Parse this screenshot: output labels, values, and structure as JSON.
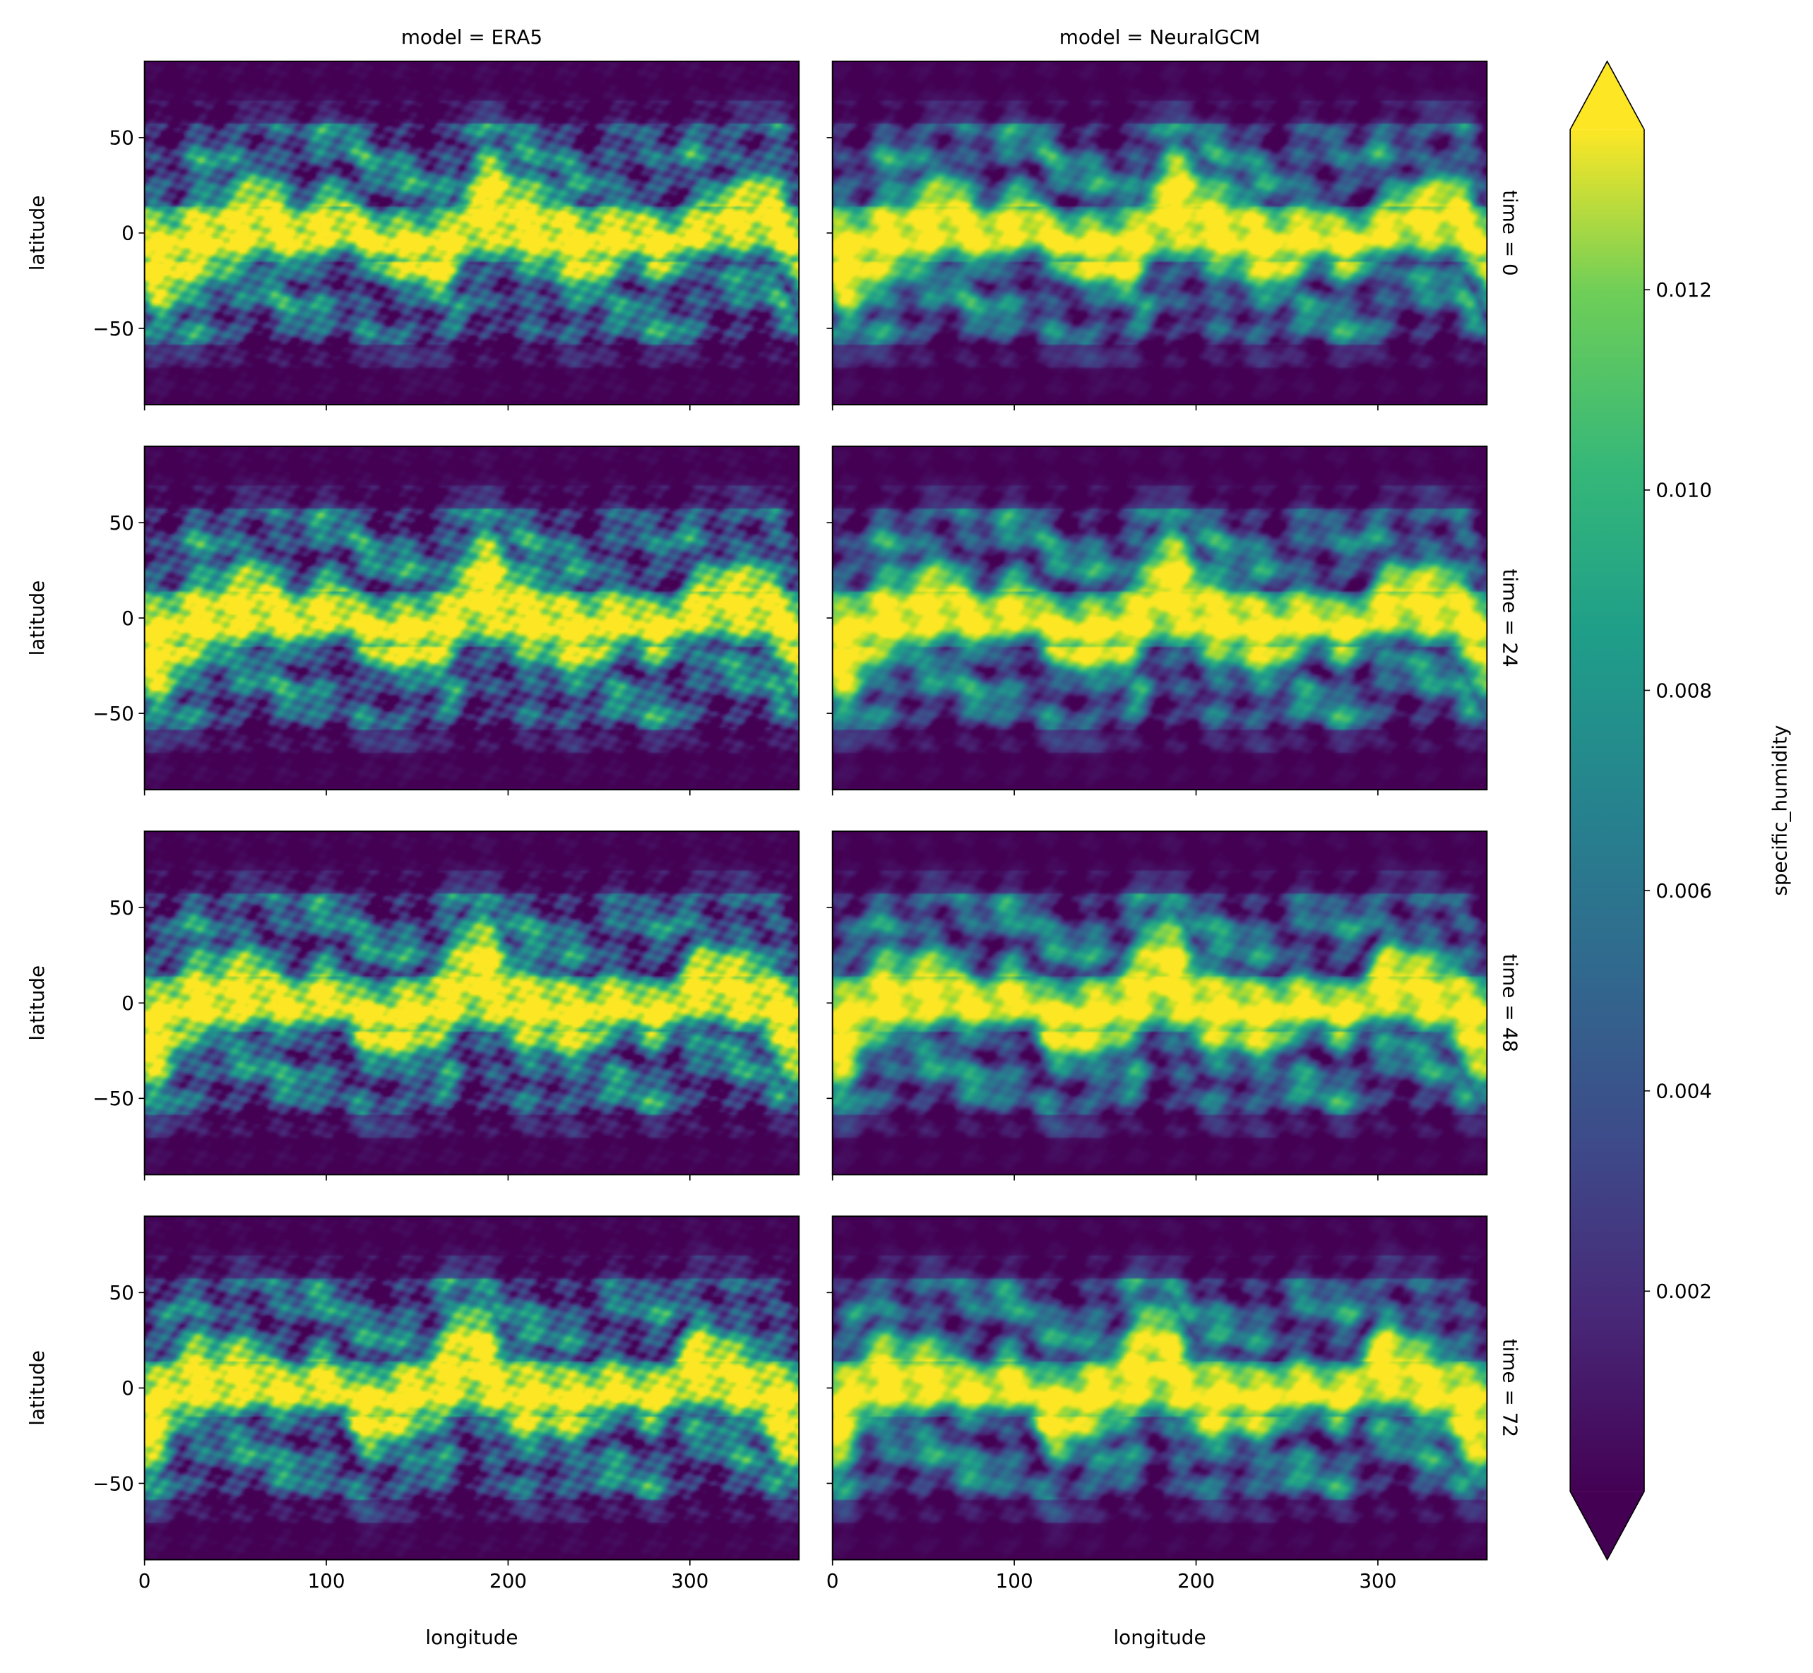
{
  "chart_data": {
    "type": "heatmap",
    "facet_columns": {
      "variable": "model",
      "labels": [
        "model = ERA5",
        "model = NeuralGCM"
      ]
    },
    "facet_rows": {
      "variable": "time",
      "labels": [
        "time = 0",
        "time = 24",
        "time = 48",
        "time = 72"
      ]
    },
    "xlabel": "longitude",
    "ylabel": "latitude",
    "xlim": [
      0,
      360
    ],
    "ylim": [
      -90,
      90
    ],
    "xticks": [
      0,
      100,
      200,
      300
    ],
    "xtick_labels": [
      "0",
      "100",
      "200",
      "300"
    ],
    "yticks": [
      50,
      0,
      -50
    ],
    "ytick_labels": [
      "50",
      "0",
      "−50"
    ],
    "colorbar": {
      "label": "specific_humidity",
      "colormap": "viridis",
      "range": [
        0.0,
        0.0136
      ],
      "extend": "both",
      "ticks": [
        0.002,
        0.004,
        0.006,
        0.008,
        0.01,
        0.012
      ],
      "tick_labels": [
        "0.002",
        "0.004",
        "0.006",
        "0.008",
        "0.010",
        "0.012"
      ]
    },
    "field_description_values": {
      "tropical_band_max": 0.0136,
      "polar_min": 0.0
    }
  }
}
